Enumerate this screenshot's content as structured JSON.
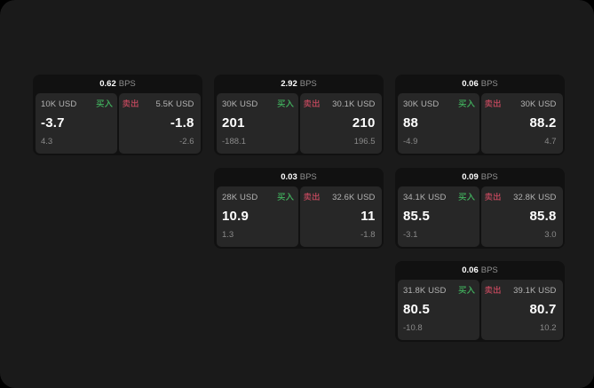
{
  "theme": {
    "background": "#000000",
    "panel": "#1a1a1a",
    "card": "#111111",
    "subcard": "#272727",
    "text": "#ffffff",
    "muted_label": "#b3b3b3",
    "faint_value": "#8a8a8a",
    "buy_color": "#42b45f",
    "sell_color": "#c4495e"
  },
  "cards": [
    {
      "col": 1,
      "row": 1,
      "spread": "0.62",
      "unit": "BPS",
      "buy": {
        "amount": "10K USD",
        "label": "买入",
        "price": "-3.7",
        "change": "4.3"
      },
      "sell": {
        "label": "卖出",
        "amount": "5.5K USD",
        "price": "-1.8",
        "change": "-2.6"
      }
    },
    {
      "col": 2,
      "row": 1,
      "spread": "2.92",
      "unit": "BPS",
      "buy": {
        "amount": "30K USD",
        "label": "买入",
        "price": "201",
        "change": "-188.1"
      },
      "sell": {
        "label": "卖出",
        "amount": "30.1K USD",
        "price": "210",
        "change": "196.5"
      }
    },
    {
      "col": 3,
      "row": 1,
      "spread": "0.06",
      "unit": "BPS",
      "buy": {
        "amount": "30K USD",
        "label": "买入",
        "price": "88",
        "change": "-4.9"
      },
      "sell": {
        "label": "卖出",
        "amount": "30K USD",
        "price": "88.2",
        "change": "4.7"
      }
    },
    {
      "col": 2,
      "row": 2,
      "spread": "0.03",
      "unit": "BPS",
      "buy": {
        "amount": "28K USD",
        "label": "买入",
        "price": "10.9",
        "change": "1.3"
      },
      "sell": {
        "label": "卖出",
        "amount": "32.6K USD",
        "price": "11",
        "change": "-1.8"
      }
    },
    {
      "col": 3,
      "row": 2,
      "spread": "0.09",
      "unit": "BPS",
      "buy": {
        "amount": "34.1K USD",
        "label": "买入",
        "price": "85.5",
        "change": "-3.1"
      },
      "sell": {
        "label": "卖出",
        "amount": "32.8K USD",
        "price": "85.8",
        "change": "3.0"
      }
    },
    {
      "col": 3,
      "row": 3,
      "spread": "0.06",
      "unit": "BPS",
      "buy": {
        "amount": "31.8K USD",
        "label": "买入",
        "price": "80.5",
        "change": "-10.8"
      },
      "sell": {
        "label": "卖出",
        "amount": "39.1K USD",
        "price": "80.7",
        "change": "10.2"
      }
    }
  ]
}
